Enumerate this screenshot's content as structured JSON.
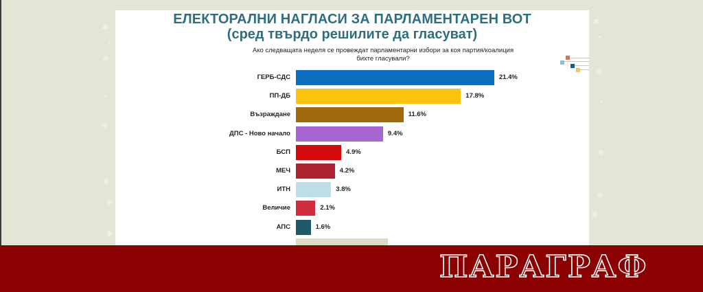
{
  "title": "ЕЛЕКТОРАЛНИ НАГЛАСИ ЗА ПАРЛАМЕНТАРЕН ВОТ",
  "subtitle": "(сред твърдо решилите да гласуват)",
  "question_line1": "Ако следващата неделя се провеждат парламентарни избори за коя партия/коалиция",
  "question_line2": "бихте гласували?",
  "brand": "ПАРАГРАФ",
  "colors": {
    "title": "#2e6f7e",
    "background": "#e4e5d4",
    "banner": "#8b0000"
  },
  "chart_data": {
    "type": "bar",
    "orientation": "horizontal",
    "title": "ЕЛЕКТОРАЛНИ НАГЛАСИ ЗА ПАРЛАМЕНТАРЕН ВОТ",
    "subtitle": "(сред твърдо решилите да гласуват)",
    "question": "Ако следващата неделя се провеждат парламентарни избори за коя партия/коалиция бихте гласували?",
    "xlabel": "",
    "ylabel": "",
    "grid": false,
    "legend": "none",
    "unit": "%",
    "categories": [
      "ГЕРБ-СДС",
      "ПП-ДБ",
      "Възраждане",
      "ДПС - Ново начало",
      "БСП",
      "МЕЧ",
      "ИТН",
      "Величие",
      "АПС"
    ],
    "values": [
      21.4,
      17.8,
      11.6,
      9.4,
      4.9,
      4.2,
      3.8,
      2.1,
      1.6
    ],
    "value_labels": [
      "21.4%",
      "17.8%",
      "11.6%",
      "9.4%",
      "4.9%",
      "4.2%",
      "3.8%",
      "2.1%",
      "1.6%"
    ],
    "bar_colors": [
      "#0b6fc2",
      "#fdc20e",
      "#a06a0c",
      "#a766cf",
      "#d40a0a",
      "#ad2430",
      "#bde0e8",
      "#d12c3e",
      "#1f5a68"
    ],
    "partially_hidden_bar": {
      "color": "#dcdcc4",
      "approx_value": 9.9
    }
  }
}
